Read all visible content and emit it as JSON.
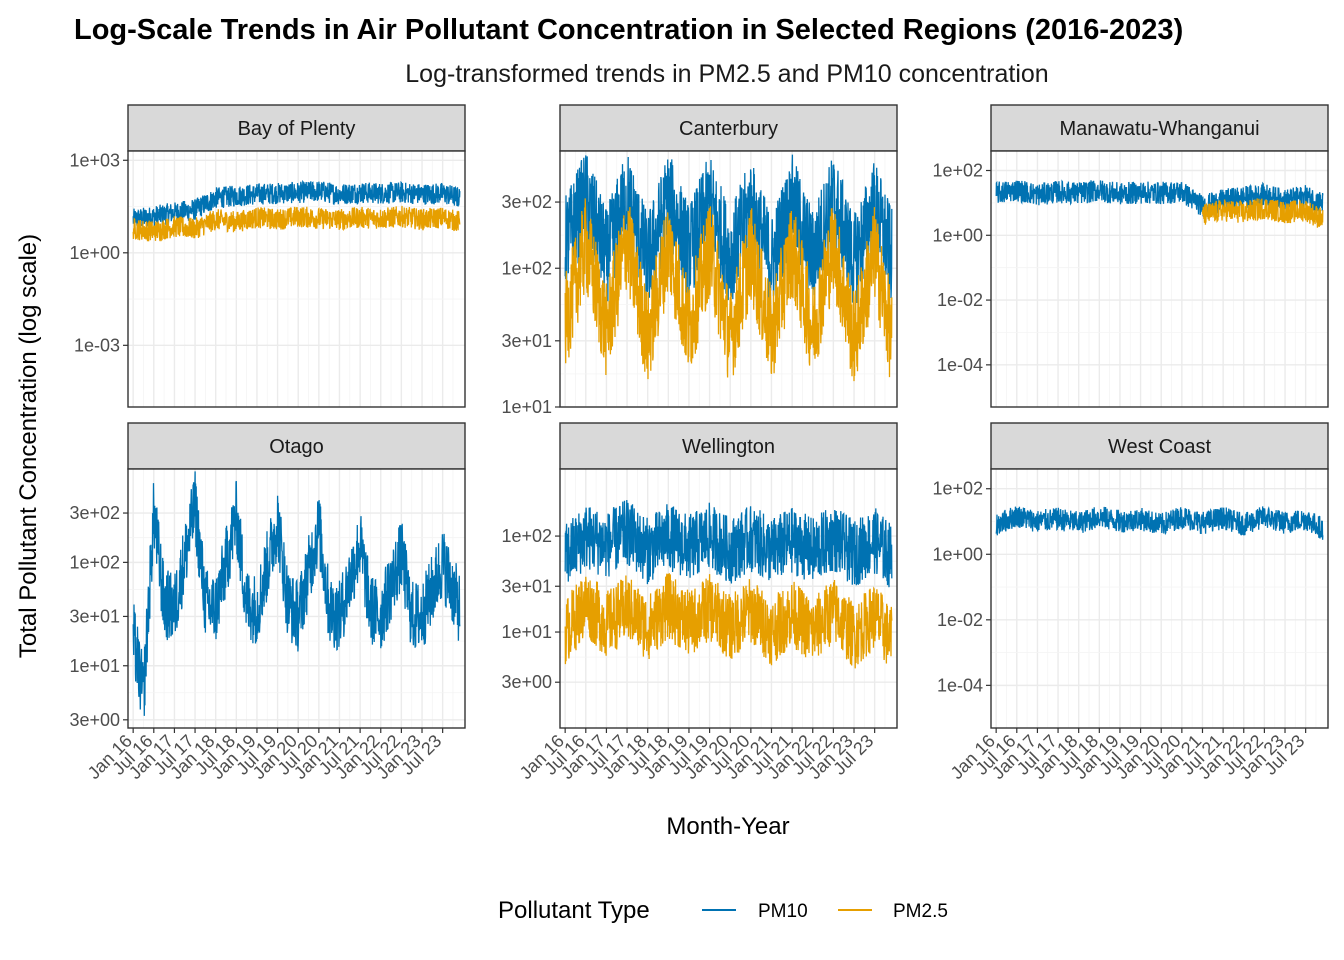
{
  "title": "Log-Scale Trends in Air Pollutant Concentration in Selected Regions (2016-2023)",
  "subtitle": "Log-transformed trends in PM2.5 and PM10 concentration",
  "chart_data": {
    "type": "line",
    "facet": "region",
    "xlabel": "Month-Year",
    "ylabel": "Total Pollutant Concentration (log scale)",
    "y_scale": "log10",
    "x_range": [
      "2016-01",
      "2023-12"
    ],
    "x_tick_labels": [
      "Jan 16",
      "Jul 16",
      "Jan 17",
      "Jul 17",
      "Jan 18",
      "Jul 18",
      "Jan 19",
      "Jul 19",
      "Jan 20",
      "Jul 20",
      "Jan 21",
      "Jul 21",
      "Jan 22",
      "Jul 22",
      "Jan 23",
      "Jul 23"
    ],
    "grid": true,
    "legend": {
      "title": "Pollutant Type",
      "position": "bottom",
      "entries": [
        {
          "label": "PM10",
          "color": "#0072B2"
        },
        {
          "label": "PM2.5",
          "color": "#E69F00"
        }
      ]
    },
    "panels": [
      {
        "region": "Bay of Plenty",
        "ylim": [
          1e-05,
          2000
        ],
        "y_ticks": [
          0.001,
          1,
          1000
        ],
        "y_tick_labels": [
          "1e-03",
          "1e+00",
          "1e+03"
        ],
        "series": [
          {
            "name": "PM10",
            "x": [
              "2016-01",
              "2016-07",
              "2017-01",
              "2017-07",
              "2018-01",
              "2018-07",
              "2019-01",
              "2019-07",
              "2020-01",
              "2020-07",
              "2021-01",
              "2021-07",
              "2022-01",
              "2022-07",
              "2023-01",
              "2023-07",
              "2023-12"
            ],
            "y": [
              12,
              15,
              20,
              25,
              60,
              70,
              80,
              85,
              90,
              100,
              80,
              90,
              85,
              90,
              80,
              85,
              60
            ]
          },
          {
            "name": "PM2.5",
            "x": [
              "2016-01",
              "2016-07",
              "2017-01",
              "2017-07",
              "2018-01",
              "2018-07",
              "2019-01",
              "2019-07",
              "2020-01",
              "2020-07",
              "2021-01",
              "2021-07",
              "2022-01",
              "2022-07",
              "2023-01",
              "2023-07",
              "2023-12"
            ],
            "y": [
              6,
              5,
              7,
              6,
              12,
              10,
              14,
              12,
              15,
              13,
              12,
              14,
              13,
              15,
              12,
              14,
              10
            ]
          }
        ]
      },
      {
        "region": "Canterbury",
        "ylim": [
          10,
          700
        ],
        "y_ticks": [
          10,
          30,
          100,
          300
        ],
        "y_tick_labels": [
          "1e+01",
          "3e+01",
          "1e+02",
          "3e+02"
        ],
        "series": [
          {
            "name": "PM10",
            "x": [
              "2016-01",
              "2016-07",
              "2017-01",
              "2017-07",
              "2018-01",
              "2018-07",
              "2019-01",
              "2019-07",
              "2020-01",
              "2020-07",
              "2021-01",
              "2021-07",
              "2022-01",
              "2022-07",
              "2023-01",
              "2023-07",
              "2023-12"
            ],
            "y": [
              150,
              320,
              120,
              330,
              110,
              320,
              130,
              300,
              120,
              280,
              110,
              300,
              120,
              310,
              110,
              280,
              120
            ]
          },
          {
            "name": "PM2.5",
            "x": [
              "2016-01",
              "2016-07",
              "2017-01",
              "2017-07",
              "2018-01",
              "2018-07",
              "2019-01",
              "2019-07",
              "2020-01",
              "2020-07",
              "2021-01",
              "2021-07",
              "2022-01",
              "2022-07",
              "2023-01",
              "2023-07",
              "2023-12"
            ],
            "y": [
              40,
              150,
              35,
              160,
              30,
              150,
              35,
              140,
              30,
              130,
              32,
              140,
              35,
              150,
              30,
              130,
              30
            ]
          }
        ]
      },
      {
        "region": "Manawatu-Whanganui",
        "ylim": [
          5e-06,
          400
        ],
        "y_ticks": [
          0.0001,
          0.01,
          1,
          100
        ],
        "y_tick_labels": [
          "1e-04",
          "1e-02",
          "1e+00",
          "1e+02"
        ],
        "series": [
          {
            "name": "PM10",
            "x": [
              "2016-01",
              "2016-07",
              "2017-01",
              "2017-07",
              "2018-01",
              "2018-07",
              "2019-01",
              "2019-07",
              "2020-01",
              "2020-07",
              "2021-01",
              "2021-07",
              "2022-01",
              "2022-07",
              "2023-01",
              "2023-07",
              "2023-12"
            ],
            "y": [
              20,
              25,
              18,
              22,
              20,
              24,
              19,
              21,
              20,
              22,
              8,
              12,
              15,
              18,
              12,
              16,
              10
            ]
          },
          {
            "name": "PM2.5",
            "x": [
              "2021-01",
              "2021-07",
              "2022-01",
              "2022-07",
              "2023-01",
              "2023-07",
              "2023-12"
            ],
            "y": [
              4,
              6,
              5,
              7,
              5,
              6,
              3
            ]
          }
        ]
      },
      {
        "region": "Otago",
        "ylim": [
          2.5,
          800
        ],
        "y_ticks": [
          3,
          10,
          30,
          100,
          300
        ],
        "y_tick_labels": [
          "3e+00",
          "1e+01",
          "3e+01",
          "1e+02",
          "3e+02"
        ],
        "series": [
          {
            "name": "PM10",
            "x": [
              "2016-01",
              "2016-04",
              "2016-07",
              "2016-10",
              "2017-01",
              "2017-07",
              "2017-10",
              "2018-01",
              "2018-07",
              "2018-10",
              "2019-01",
              "2019-07",
              "2019-10",
              "2020-01",
              "2020-07",
              "2020-10",
              "2021-01",
              "2021-07",
              "2021-10",
              "2022-01",
              "2022-07",
              "2022-10",
              "2023-01",
              "2023-07",
              "2023-12"
            ],
            "y": [
              20,
              5,
              300,
              40,
              35,
              350,
              40,
              35,
              280,
              40,
              35,
              250,
              40,
              30,
              220,
              35,
              30,
              150,
              35,
              30,
              120,
              30,
              30,
              100,
              35
            ]
          }
        ]
      },
      {
        "region": "Wellington",
        "ylim": [
          1.0,
          500
        ],
        "y_ticks": [
          3,
          10,
          30,
          100
        ],
        "y_tick_labels": [
          "3e+00",
          "1e+01",
          "3e+01",
          "1e+02"
        ],
        "series": [
          {
            "name": "PM10",
            "x": [
              "2016-01",
              "2016-07",
              "2017-01",
              "2017-07",
              "2018-01",
              "2018-07",
              "2019-01",
              "2019-07",
              "2020-01",
              "2020-07",
              "2021-01",
              "2021-07",
              "2022-01",
              "2022-07",
              "2023-01",
              "2023-07",
              "2023-12"
            ],
            "y": [
              60,
              100,
              80,
              110,
              70,
              100,
              75,
              100,
              70,
              95,
              70,
              90,
              70,
              95,
              65,
              90,
              60
            ]
          },
          {
            "name": "PM2.5",
            "x": [
              "2016-01",
              "2016-07",
              "2017-01",
              "2017-07",
              "2018-01",
              "2018-07",
              "2019-01",
              "2019-07",
              "2020-01",
              "2020-07",
              "2021-01",
              "2021-07",
              "2022-01",
              "2022-07",
              "2023-01",
              "2023-07",
              "2023-12"
            ],
            "y": [
              10,
              20,
              12,
              18,
              11,
              19,
              12,
              18,
              11,
              17,
              10,
              16,
              10,
              17,
              9,
              15,
              8
            ]
          }
        ]
      },
      {
        "region": "West Coast",
        "ylim": [
          5e-06,
          400
        ],
        "y_ticks": [
          0.0001,
          0.01,
          1,
          100
        ],
        "y_tick_labels": [
          "1e-04",
          "1e-02",
          "1e+00",
          "1e+02"
        ],
        "series": [
          {
            "name": "PM10",
            "x": [
              "2016-01",
              "2016-07",
              "2017-01",
              "2017-07",
              "2018-01",
              "2018-07",
              "2019-01",
              "2019-07",
              "2020-01",
              "2020-07",
              "2021-01",
              "2021-07",
              "2022-01",
              "2022-07",
              "2023-01",
              "2023-07",
              "2023-12"
            ],
            "y": [
              8,
              15,
              10,
              12,
              9,
              14,
              10,
              12,
              8,
              14,
              9,
              13,
              8,
              14,
              9,
              12,
              6
            ]
          }
        ]
      }
    ]
  }
}
